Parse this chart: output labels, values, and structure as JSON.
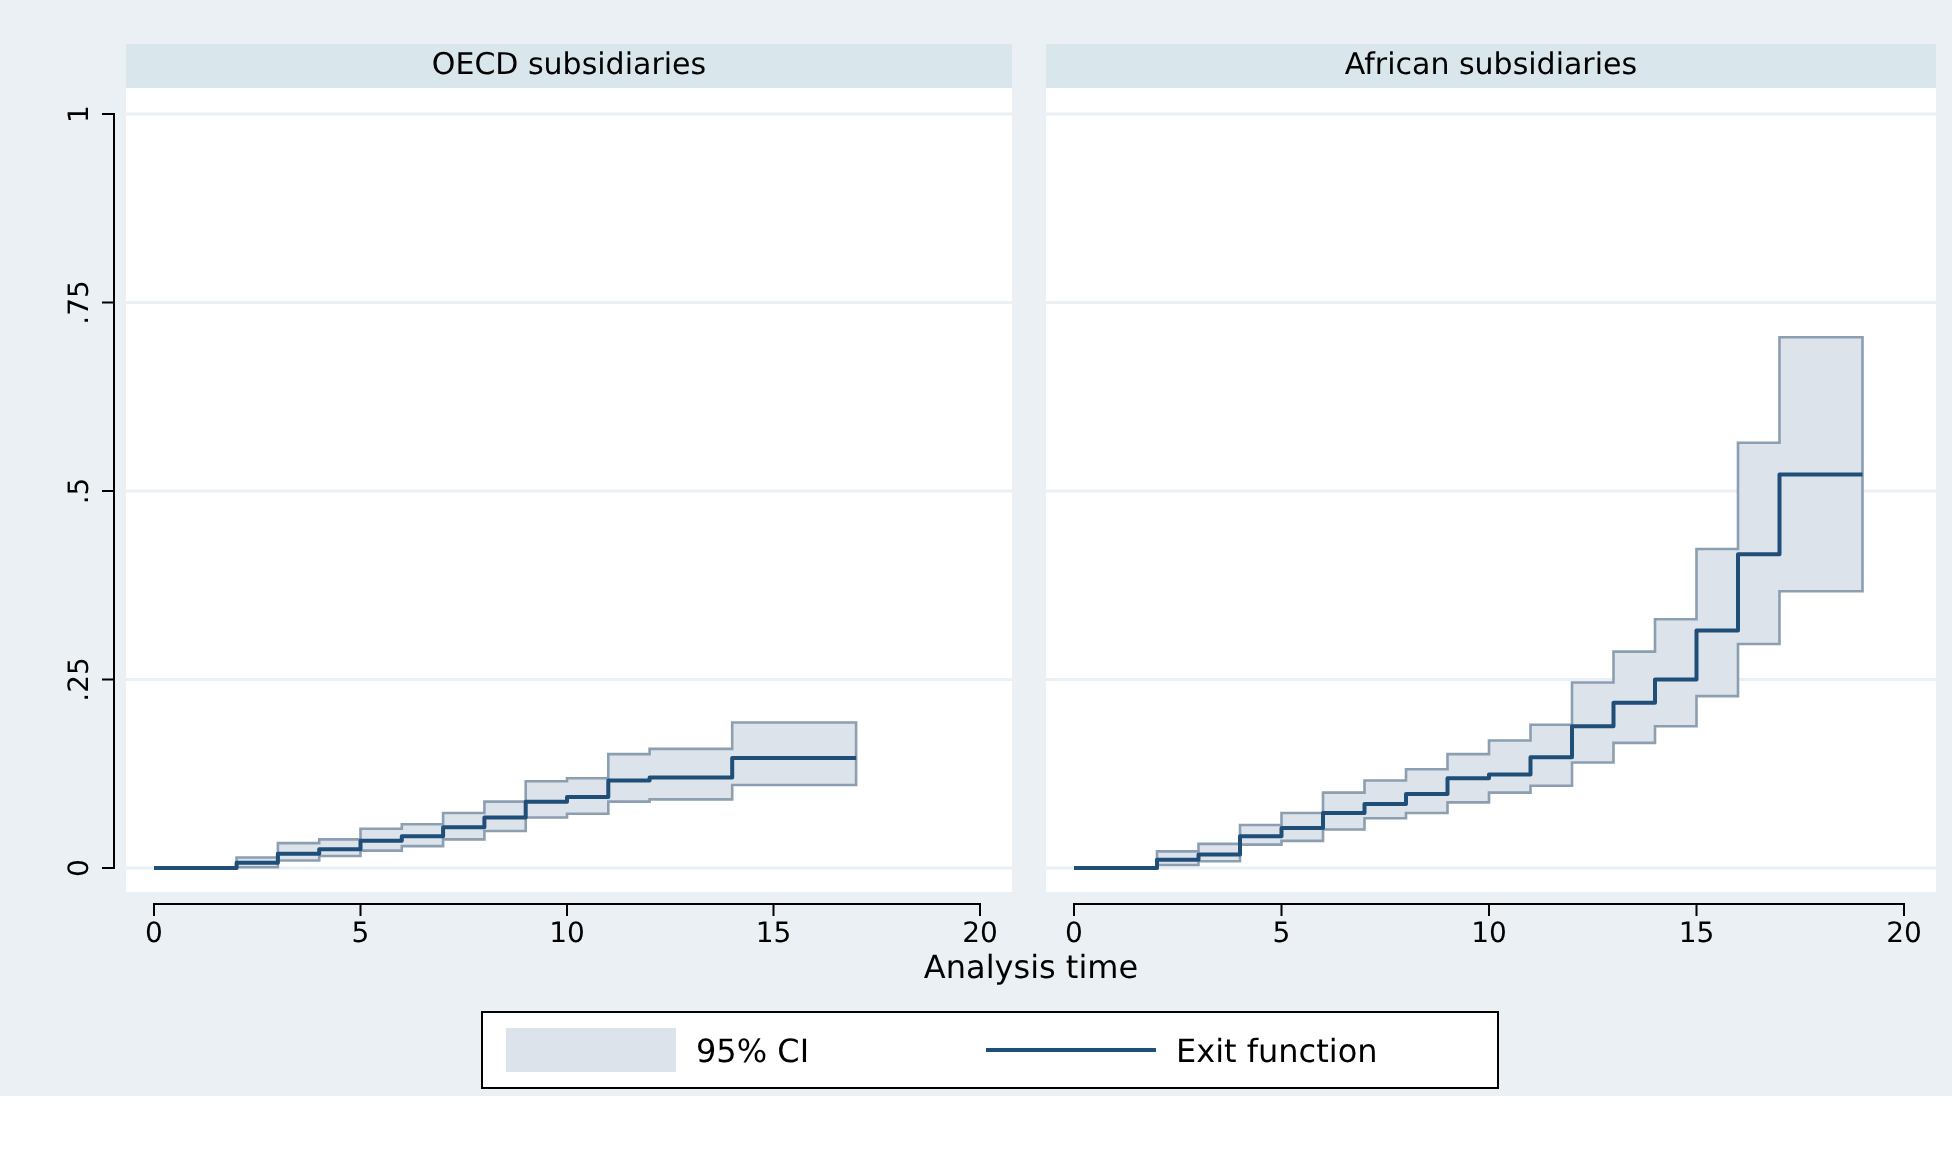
{
  "chart_data": [
    {
      "type": "step",
      "title": "OECD subsidiaries",
      "xlabel": "Analysis time",
      "xlim": [
        0,
        20
      ],
      "xticks": [
        0,
        5,
        10,
        15,
        20
      ],
      "ylim": [
        0,
        1
      ],
      "yticks": [
        0,
        {
          "value": 0.25,
          "label": ".25"
        },
        {
          "value": 0.5,
          "label": ".5"
        },
        {
          "value": 0.75,
          "label": ".75"
        },
        1
      ],
      "grid": "y",
      "legend": "bottom",
      "annotations": [
        "95% CI"
      ],
      "series": [
        {
          "name": "Exit function",
          "color": "#1f4e79",
          "x": [
            0,
            2,
            3,
            4,
            5,
            6,
            7,
            8,
            9,
            10,
            11,
            12,
            14,
            17
          ],
          "values": [
            0,
            0.007,
            0.019,
            0.025,
            0.036,
            0.042,
            0.054,
            0.067,
            0.088,
            0.094,
            0.116,
            0.12,
            0.146,
            0.146
          ],
          "lower": [
            0,
            0.001,
            0.01,
            0.016,
            0.023,
            0.029,
            0.038,
            0.049,
            0.067,
            0.072,
            0.088,
            0.091,
            0.11,
            0.11
          ],
          "upper": [
            0,
            0.014,
            0.033,
            0.038,
            0.052,
            0.058,
            0.073,
            0.088,
            0.115,
            0.119,
            0.151,
            0.158,
            0.193,
            0.193
          ]
        }
      ]
    },
    {
      "type": "step",
      "title": "African subsidiaries",
      "xlim": [
        0,
        20
      ],
      "xticks": [
        0,
        5,
        10,
        15,
        20
      ],
      "ylim": [
        0,
        1
      ],
      "yticks": [
        0,
        0.25,
        0.5,
        0.75,
        1
      ],
      "grid": "y",
      "tick_labels": "x",
      "series": [
        {
          "color": "#1f4e79",
          "x": [
            0,
            2,
            3,
            4,
            5,
            6,
            7,
            8,
            9,
            10,
            11,
            12,
            13,
            14,
            15,
            16,
            17,
            19
          ],
          "values": [
            0,
            0.011,
            0.018,
            0.042,
            0.053,
            0.073,
            0.085,
            0.098,
            0.119,
            0.124,
            0.147,
            0.188,
            0.219,
            0.25,
            0.315,
            0.416,
            0.522,
            0.522
          ],
          "lower": [
            0,
            0.004,
            0.009,
            0.031,
            0.036,
            0.051,
            0.066,
            0.073,
            0.087,
            0.1,
            0.109,
            0.14,
            0.166,
            0.188,
            0.228,
            0.297,
            0.367,
            0.367
          ],
          "upper": [
            0,
            0.022,
            0.032,
            0.057,
            0.073,
            0.1,
            0.116,
            0.131,
            0.151,
            0.169,
            0.19,
            0.246,
            0.287,
            0.33,
            0.423,
            0.564,
            0.704,
            0.704
          ]
        }
      ]
    }
  ]
}
